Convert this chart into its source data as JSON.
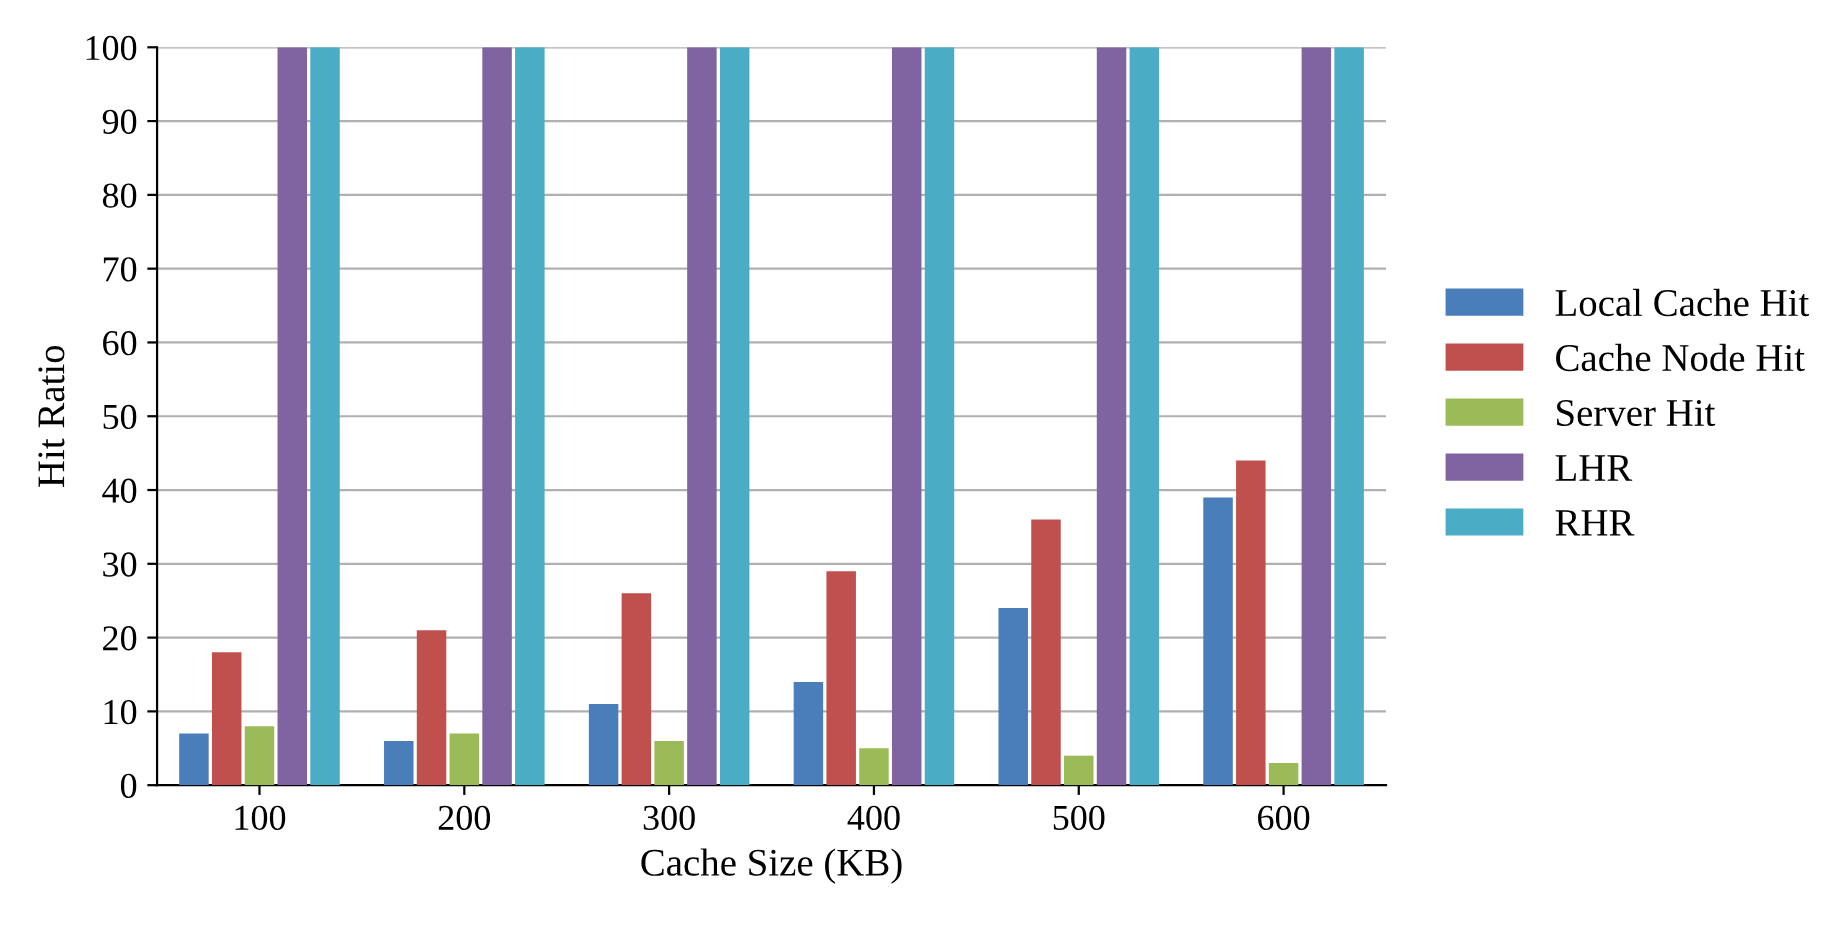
{
  "chart_data": {
    "type": "bar",
    "xlabel": "Cache Size (KB)",
    "ylabel": "Hit Ratio",
    "categories": [
      "100",
      "200",
      "300",
      "400",
      "500",
      "600"
    ],
    "series": [
      {
        "name": "Local Cache Hit",
        "color": "#4a7ebb",
        "values": [
          7,
          6,
          11,
          14,
          24,
          39
        ]
      },
      {
        "name": "Cache Node Hit",
        "color": "#c0504d",
        "values": [
          18,
          21,
          26,
          29,
          36,
          44
        ]
      },
      {
        "name": "Server Hit",
        "color": "#9bbb59",
        "values": [
          8,
          7,
          6,
          5,
          4,
          3
        ]
      },
      {
        "name": "LHR",
        "color": "#8064a2",
        "values": [
          100,
          100,
          100,
          100,
          100,
          100
        ]
      },
      {
        "name": "RHR",
        "color": "#4bacc6",
        "values": [
          100,
          100,
          100,
          100,
          100,
          100
        ]
      }
    ],
    "ylim": [
      0,
      100
    ],
    "yticks": [
      0,
      10,
      20,
      30,
      40,
      50,
      60,
      70,
      80,
      90,
      100
    ],
    "grid": "y",
    "legend": "right"
  }
}
